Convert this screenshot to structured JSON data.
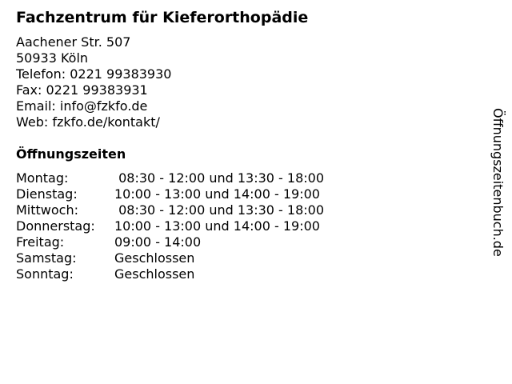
{
  "title": "Fachzentrum für Kieferorthopädie",
  "address": [
    "Aachener Str. 507",
    "50933 Köln",
    "Telefon: 0221 99383930",
    "Fax: 0221 99383931",
    "Email: info@fzkfo.de",
    "Web: fzkfo.de/kontakt/"
  ],
  "hours_heading": "Öffnungszeiten",
  "hours": [
    {
      "day": "Montag:",
      "time": " 08:30 - 12:00 und 13:30 - 18:00"
    },
    {
      "day": "Dienstag:",
      "time": "10:00 - 13:00 und 14:00 - 19:00"
    },
    {
      "day": "Mittwoch:",
      "time": " 08:30 - 12:00 und 13:30 - 18:00"
    },
    {
      "day": "Donnerstag:",
      "time": "10:00 - 13:00 und 14:00 - 19:00"
    },
    {
      "day": "Freitag:",
      "time": "09:00 - 14:00"
    },
    {
      "day": "Samstag:",
      "time": "Geschlossen"
    },
    {
      "day": "Sonntag:",
      "time": "Geschlossen"
    }
  ],
  "watermark": "Öffnungszeitenbuch.de"
}
